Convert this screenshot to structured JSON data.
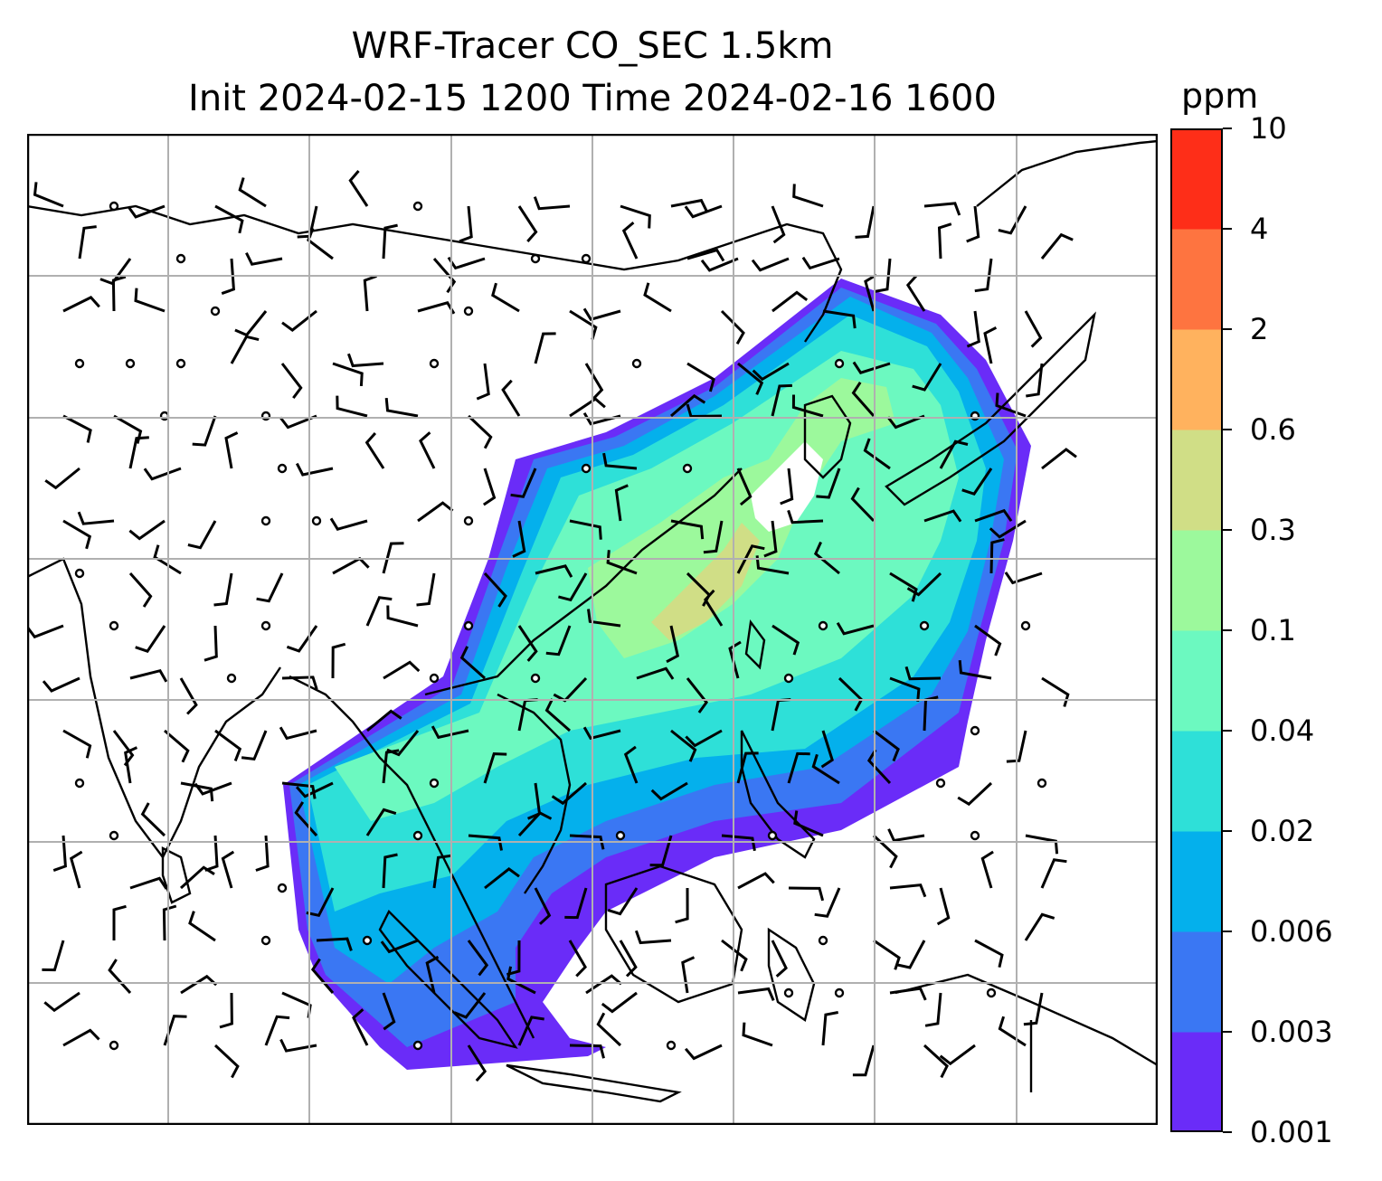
{
  "title_line1": "WRF-Tracer CO_SEC 1.5km",
  "title_line2": "Init 2024-02-15 1200 Time 2024-02-16 1600",
  "colorbar": {
    "unit": "ppm",
    "levels": [
      "0.001",
      "0.003",
      "0.006",
      "0.02",
      "0.04",
      "0.1",
      "0.3",
      "0.6",
      "2",
      "4",
      "10"
    ],
    "colors": [
      "#6a2cf8",
      "#3a77f3",
      "#04b0ec",
      "#2ee0d8",
      "#6cf9c0",
      "#9cf99c",
      "#d0de86",
      "#ffb25e",
      "#fe7440",
      "#fe2e18"
    ]
  },
  "map": {
    "gridlines": "on",
    "gridline_color": "#b0b0b0",
    "coastline_color": "#000000",
    "overlay": "wind barbs"
  }
}
